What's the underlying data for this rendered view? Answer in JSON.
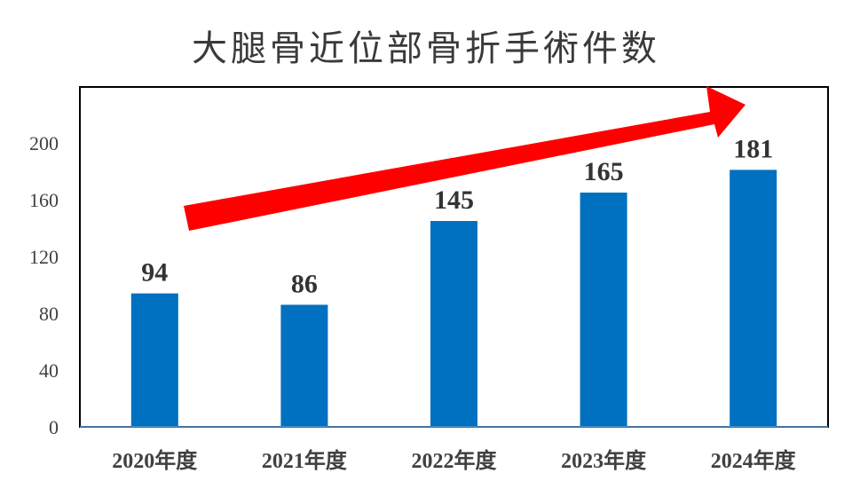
{
  "chart_data": {
    "type": "bar",
    "title": "大腿骨近位部骨折手術件数",
    "categories": [
      "2020年度",
      "2021年度",
      "2022年度",
      "2023年度",
      "2024年度"
    ],
    "values": [
      94,
      86,
      145,
      165,
      181
    ],
    "data_labels": [
      "94",
      "86",
      "145",
      "165",
      "181"
    ],
    "yticks": [
      "0",
      "40",
      "80",
      "120",
      "160",
      "200"
    ],
    "ylim": [
      0,
      230
    ],
    "xlabel": "",
    "ylabel": "",
    "grid": false,
    "bar_color": "#0070C0",
    "arrow_color": "#FF0000",
    "annotation": "upward trend arrow"
  }
}
